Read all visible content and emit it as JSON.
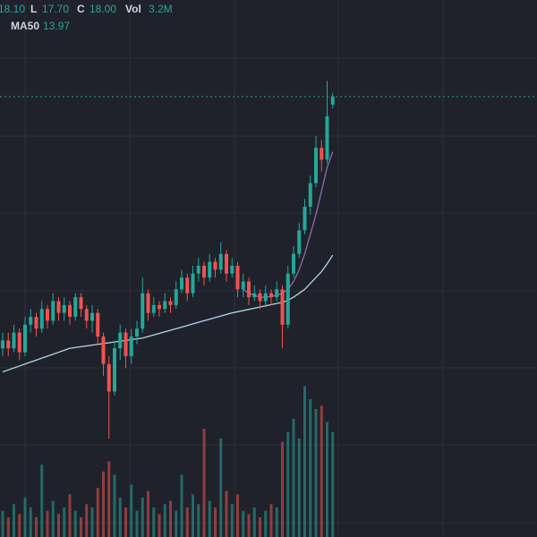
{
  "header": {
    "high": "18.10",
    "low_label": "L",
    "low": "17.70",
    "close_label": "C",
    "close": "18.00",
    "vol_label": "Vol",
    "volume": "3.2M",
    "ma_label": "MA50",
    "ma": "13.97"
  },
  "chart_data": {
    "type": "candlestick",
    "up_color": "#26a69a",
    "down_color": "#ef5350",
    "ylim": [
      6.8,
      20.46
    ],
    "volume_lim": [
      0,
      16.36
    ],
    "candles": [
      [
        11.6,
        12.0,
        11.4,
        11.8
      ],
      [
        11.8,
        12.0,
        11.4,
        11.6
      ],
      [
        11.6,
        12.2,
        11.5,
        12.0
      ],
      [
        12.0,
        12.1,
        11.3,
        11.5
      ],
      [
        11.5,
        12.4,
        11.4,
        12.2
      ],
      [
        12.2,
        12.6,
        12.0,
        12.4
      ],
      [
        12.4,
        12.5,
        11.9,
        12.1
      ],
      [
        12.1,
        12.8,
        12.0,
        12.6
      ],
      [
        12.6,
        12.7,
        12.1,
        12.3
      ],
      [
        12.3,
        13.0,
        12.2,
        12.8
      ],
      [
        12.8,
        12.9,
        12.3,
        12.5
      ],
      [
        12.5,
        12.9,
        12.3,
        12.7
      ],
      [
        12.7,
        12.8,
        12.2,
        12.4
      ],
      [
        12.4,
        13.0,
        12.3,
        12.9
      ],
      [
        12.9,
        13.0,
        12.4,
        12.6
      ],
      [
        12.6,
        12.7,
        12.1,
        12.3
      ],
      [
        12.3,
        12.7,
        12.0,
        12.5
      ],
      [
        12.5,
        12.6,
        11.7,
        11.9
      ],
      [
        11.9,
        12.0,
        10.9,
        11.2
      ],
      [
        11.2,
        11.4,
        9.3,
        10.5
      ],
      [
        10.5,
        11.8,
        10.4,
        11.6
      ],
      [
        11.6,
        12.2,
        11.3,
        12.0
      ],
      [
        12.0,
        12.1,
        11.1,
        11.4
      ],
      [
        11.4,
        12.1,
        11.2,
        11.9
      ],
      [
        11.9,
        12.3,
        11.7,
        12.1
      ],
      [
        12.1,
        13.4,
        12.0,
        13.0
      ],
      [
        13.0,
        13.1,
        12.3,
        12.5
      ],
      [
        12.5,
        12.9,
        12.4,
        12.7
      ],
      [
        12.7,
        12.8,
        12.4,
        12.6
      ],
      [
        12.6,
        13.0,
        12.5,
        12.8
      ],
      [
        12.8,
        12.9,
        12.5,
        12.7
      ],
      [
        12.7,
        13.3,
        12.6,
        13.1
      ],
      [
        13.1,
        13.6,
        13.0,
        13.4
      ],
      [
        13.4,
        13.5,
        12.8,
        13.0
      ],
      [
        13.0,
        13.7,
        12.9,
        13.5
      ],
      [
        13.5,
        13.9,
        13.3,
        13.7
      ],
      [
        13.7,
        13.8,
        13.2,
        13.4
      ],
      [
        13.4,
        14.0,
        13.3,
        13.8
      ],
      [
        13.8,
        13.9,
        13.4,
        13.6
      ],
      [
        13.6,
        14.3,
        13.5,
        14.0
      ],
      [
        14.0,
        14.1,
        13.3,
        13.5
      ],
      [
        13.5,
        13.9,
        13.4,
        13.7
      ],
      [
        13.7,
        13.8,
        12.9,
        13.1
      ],
      [
        13.1,
        13.5,
        12.9,
        13.3
      ],
      [
        13.3,
        13.4,
        12.7,
        12.9
      ],
      [
        12.9,
        13.2,
        12.8,
        13.0
      ],
      [
        13.0,
        13.1,
        12.6,
        12.8
      ],
      [
        12.8,
        13.2,
        12.7,
        13.0
      ],
      [
        13.0,
        13.1,
        12.7,
        12.9
      ],
      [
        12.9,
        13.3,
        12.8,
        13.1
      ],
      [
        13.1,
        13.2,
        11.6,
        12.2
      ],
      [
        12.2,
        13.7,
        12.1,
        13.5
      ],
      [
        13.5,
        14.2,
        13.4,
        14.0
      ],
      [
        14.0,
        14.8,
        13.9,
        14.6
      ],
      [
        14.6,
        15.4,
        14.5,
        15.2
      ],
      [
        15.2,
        16.0,
        15.0,
        15.8
      ],
      [
        15.8,
        17.0,
        15.7,
        16.7
      ],
      [
        16.7,
        16.9,
        16.1,
        16.4
      ],
      [
        16.4,
        18.4,
        16.3,
        17.5
      ],
      [
        17.8,
        18.1,
        17.7,
        18.0
      ]
    ],
    "volumes": [
      0.8,
      0.6,
      1.0,
      0.7,
      1.2,
      0.9,
      0.6,
      2.2,
      0.8,
      1.1,
      0.7,
      0.9,
      1.3,
      0.8,
      0.6,
      1.0,
      0.9,
      1.5,
      2.0,
      2.3,
      1.9,
      1.2,
      0.9,
      1.6,
      0.8,
      1.2,
      1.4,
      0.9,
      0.7,
      1.0,
      1.1,
      0.8,
      1.9,
      0.9,
      1.3,
      1.0,
      3.3,
      1.1,
      0.9,
      3.0,
      1.4,
      1.0,
      1.3,
      0.8,
      0.7,
      0.9,
      0.6,
      0.8,
      1.0,
      0.9,
      2.9,
      3.2,
      3.6,
      3.0,
      4.6,
      4.2,
      3.9,
      4.0,
      3.5,
      3.2
    ],
    "ma_lines": [
      {
        "name": "MA50",
        "color": "#b2d8e8",
        "values": [
          11.0,
          11.05,
          11.1,
          11.15,
          11.2,
          11.25,
          11.3,
          11.35,
          11.4,
          11.45,
          11.5,
          11.55,
          11.6,
          11.62,
          11.64,
          11.66,
          11.68,
          11.7,
          11.72,
          11.74,
          11.76,
          11.78,
          11.8,
          11.82,
          11.84,
          11.86,
          11.9,
          11.94,
          11.98,
          12.02,
          12.06,
          12.1,
          12.14,
          12.18,
          12.22,
          12.26,
          12.3,
          12.34,
          12.38,
          12.42,
          12.46,
          12.5,
          12.53,
          12.56,
          12.59,
          12.62,
          12.65,
          12.68,
          12.71,
          12.74,
          12.77,
          12.82,
          12.9,
          13.0,
          13.1,
          13.25,
          13.4,
          13.55,
          13.75,
          13.97
        ]
      },
      {
        "color": "#8e6bb0",
        "values": [
          null,
          null,
          null,
          null,
          null,
          null,
          null,
          null,
          null,
          null,
          null,
          null,
          null,
          null,
          null,
          null,
          null,
          null,
          null,
          null,
          null,
          null,
          null,
          null,
          null,
          null,
          null,
          null,
          null,
          null,
          null,
          null,
          null,
          null,
          null,
          null,
          null,
          null,
          null,
          null,
          null,
          null,
          null,
          13.1,
          13.0,
          12.95,
          12.9,
          12.9,
          12.92,
          12.95,
          13.0,
          13.1,
          13.3,
          13.6,
          14.0,
          14.5,
          15.0,
          15.6,
          16.2,
          16.6
        ]
      }
    ]
  }
}
